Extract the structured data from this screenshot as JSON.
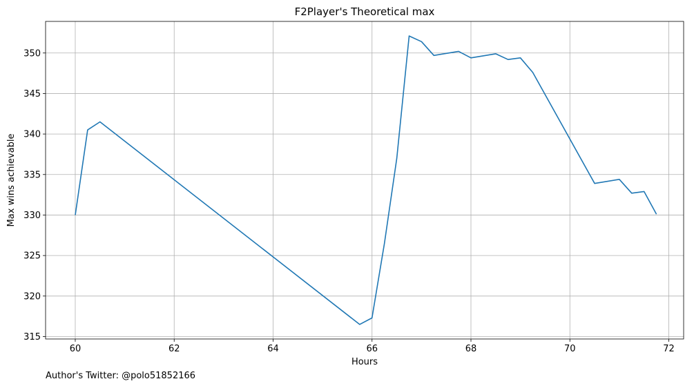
{
  "chart_data": {
    "type": "line",
    "title": "F2Player's Theoretical max",
    "xlabel": "Hours",
    "ylabel": "Max wins achievable",
    "xlim": [
      59.4,
      72.3
    ],
    "ylim": [
      314.7,
      353.9
    ],
    "xticks": [
      60,
      62,
      64,
      66,
      68,
      70,
      72
    ],
    "yticks": [
      315,
      320,
      325,
      330,
      335,
      340,
      345,
      350
    ],
    "grid": true,
    "series": [
      {
        "color": "#1f77b4",
        "x": [
          60.0,
          60.25,
          60.5,
          65.75,
          66.0,
          66.25,
          66.5,
          66.75,
          67.0,
          67.25,
          67.75,
          68.0,
          68.5,
          68.75,
          69.0,
          69.25,
          70.5,
          71.0,
          71.25,
          71.5,
          71.75
        ],
        "y": [
          330.0,
          340.5,
          341.5,
          316.5,
          317.3,
          326.5,
          337.0,
          352.1,
          351.4,
          349.7,
          350.2,
          349.4,
          349.9,
          349.2,
          349.4,
          347.6,
          333.9,
          334.4,
          332.7,
          332.9,
          330.1
        ]
      }
    ]
  },
  "footnote": "Author's Twitter: @polo51852166"
}
